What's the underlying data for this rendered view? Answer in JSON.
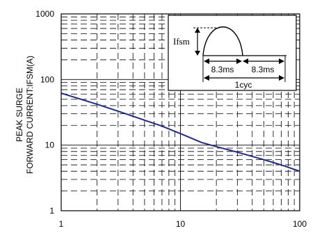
{
  "chart_data": {
    "type": "line",
    "title": "",
    "xlabel": "",
    "ylabel_line1": "PEAK SURGE",
    "ylabel_line2": "FORWARD CURRENT:IFSM(A)",
    "x_scale": "log",
    "y_scale": "log",
    "xlim": [
      1,
      100
    ],
    "ylim": [
      1,
      1000
    ],
    "grid": true,
    "x_tick_labels": [
      "1",
      "10",
      "100"
    ],
    "y_tick_labels": [
      "1",
      "10",
      "100",
      "1000"
    ],
    "series": [
      {
        "color": "#1f2a8c",
        "x": [
          1,
          2,
          3,
          5,
          7,
          10,
          15,
          20,
          30,
          50,
          70,
          100
        ],
        "y": [
          62,
          42,
          33,
          24,
          19.5,
          15,
          11,
          9.5,
          7.8,
          6.0,
          5.0,
          4.0
        ]
      }
    ],
    "inset": {
      "label_ifsm": "Ifsm",
      "label_half1": "8.3ms",
      "label_half2": "8.3ms",
      "label_cycle": "1cyc"
    }
  }
}
